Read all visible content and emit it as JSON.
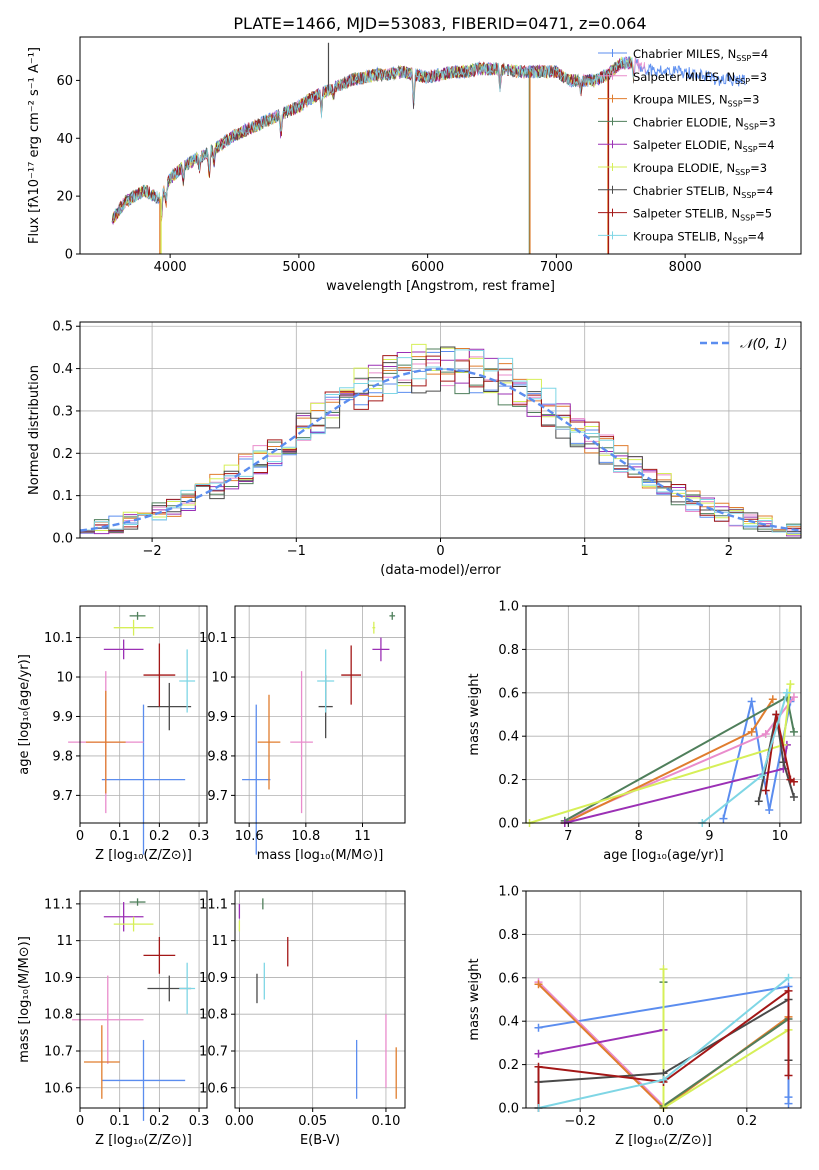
{
  "figure_title": "PLATE=1466, MJD=53083, FIBERID=0471, z=0.064",
  "colors": {
    "Chabrier MILES": "#5b8def",
    "Salpeter MILES": "#e98ccc",
    "Kroupa MILES": "#e07d2e",
    "Chabrier ELODIE": "#4f7f5b",
    "Salpeter ELODIE": "#9b30b5",
    "Kroupa ELODIE": "#d6ef58",
    "Chabrier STELIB": "#4a4a4a",
    "Salpeter STELIB": "#a31717",
    "Kroupa STELIB": "#7fd6e5"
  },
  "chart_data": [
    {
      "id": "spectrum",
      "type": "line",
      "title": "PLATE=1466, MJD=53083, FIBERID=0471, z=0.064",
      "xlabel": "wavelength [Angstrom, rest frame]",
      "ylabel": "Flux [fλ10⁻¹⁷ erg cm⁻² s⁻¹ A⁻¹]",
      "xlim": [
        3300,
        8900
      ],
      "ylim": [
        0,
        75
      ],
      "xticks": [
        4000,
        5000,
        6000,
        7000,
        8000
      ],
      "yticks": [
        0,
        20,
        40,
        60
      ],
      "grid": false,
      "legend_position": "right",
      "legend": [
        {
          "label": "Chabrier MILES, N",
          "sub": "SSP",
          "suffix": "=4"
        },
        {
          "label": "Salpeter MILES, N",
          "sub": "SSP",
          "suffix": "=3"
        },
        {
          "label": "Kroupa MILES, N",
          "sub": "SSP",
          "suffix": "=3"
        },
        {
          "label": "Chabrier ELODIE, N",
          "sub": "SSP",
          "suffix": "=3"
        },
        {
          "label": "Salpeter ELODIE, N",
          "sub": "SSP",
          "suffix": "=4"
        },
        {
          "label": "Kroupa ELODIE, N",
          "sub": "SSP",
          "suffix": "=3"
        },
        {
          "label": "Chabrier STELIB, N",
          "sub": "SSP",
          "suffix": "=4"
        },
        {
          "label": "Salpeter STELIB, N",
          "sub": "SSP",
          "suffix": "=5"
        },
        {
          "label": "Kroupa STELIB, N",
          "sub": "SSP",
          "suffix": "=4"
        }
      ],
      "continuum": [
        [
          3550,
          12
        ],
        [
          3650,
          18
        ],
        [
          3800,
          22
        ],
        [
          3920,
          19
        ],
        [
          4000,
          26
        ],
        [
          4100,
          30
        ],
        [
          4200,
          33
        ],
        [
          4300,
          35
        ],
        [
          4400,
          38
        ],
        [
          4500,
          41
        ],
        [
          4600,
          43
        ],
        [
          4700,
          45
        ],
        [
          4800,
          47
        ],
        [
          4900,
          49
        ],
        [
          5000,
          51
        ],
        [
          5100,
          54
        ],
        [
          5200,
          56
        ],
        [
          5300,
          58
        ],
        [
          5400,
          60
        ],
        [
          5500,
          61
        ],
        [
          5600,
          62
        ],
        [
          5700,
          62
        ],
        [
          5800,
          63
        ],
        [
          5900,
          62
        ],
        [
          6000,
          61
        ],
        [
          6100,
          62
        ],
        [
          6200,
          63
        ],
        [
          6300,
          63
        ],
        [
          6400,
          64
        ],
        [
          6500,
          64
        ],
        [
          6600,
          64
        ],
        [
          6700,
          63
        ],
        [
          6800,
          63
        ],
        [
          6900,
          63
        ],
        [
          7000,
          63
        ],
        [
          7100,
          60
        ],
        [
          7200,
          60
        ],
        [
          7300,
          60
        ],
        [
          7400,
          62
        ],
        [
          7500,
          66
        ],
        [
          7600,
          66
        ],
        [
          7700,
          64
        ],
        [
          7800,
          63
        ],
        [
          7900,
          63
        ],
        [
          8000,
          63
        ],
        [
          8100,
          62
        ],
        [
          8200,
          61
        ],
        [
          8300,
          60
        ],
        [
          8400,
          60
        ],
        [
          8500,
          60
        ]
      ],
      "absorption_lines": [
        [
          3934,
          7
        ],
        [
          3969,
          6
        ],
        [
          4102,
          5
        ],
        [
          4227,
          4
        ],
        [
          4304,
          9
        ],
        [
          4340,
          5
        ],
        [
          4861,
          8
        ],
        [
          5175,
          7
        ],
        [
          5270,
          3
        ],
        [
          5892,
          12
        ],
        [
          6563,
          7
        ],
        [
          7190,
          4
        ],
        [
          7600,
          5
        ]
      ],
      "sky_glitches": [
        [
          3920,
          0,
          "#e07d2e"
        ],
        [
          3930,
          0,
          "#d6ef58"
        ],
        [
          5230,
          73,
          "#4a4a4a"
        ],
        [
          6790,
          0,
          "#4f7f5b"
        ],
        [
          6795,
          0,
          "#e07d2e"
        ],
        [
          7400,
          0,
          "#e07d2e"
        ],
        [
          7405,
          0,
          "#a31717"
        ]
      ]
    },
    {
      "id": "residuals",
      "type": "histogram",
      "xlabel": "(data-model)/error",
      "ylabel": "Normed distribution",
      "xlim": [
        -2.5,
        2.5
      ],
      "ylim": [
        0,
        0.51
      ],
      "xticks": [
        -2,
        -1,
        0,
        1,
        2
      ],
      "yticks": [
        0.0,
        0.1,
        0.2,
        0.3,
        0.4,
        0.5
      ],
      "grid": true,
      "legend": [
        {
          "label": "𝒩(0, 1)"
        }
      ],
      "legend_position": "top-right",
      "bin_width": 0.1
    },
    {
      "id": "age_vs_Z",
      "type": "scatter",
      "xlabel": "Z [log₁₀(Z/Z⊙)]",
      "ylabel": "age  [log₁₀(age/yr)]",
      "xlim": [
        0.0,
        0.32
      ],
      "ylim": [
        9.63,
        10.18
      ],
      "xticks": [
        0.0,
        0.1,
        0.2,
        0.3
      ],
      "yticks": [
        9.7,
        9.8,
        9.9,
        10.0,
        10.1
      ],
      "grid": true,
      "points": [
        {
          "model": "Chabrier MILES",
          "x": 0.16,
          "y": 9.74,
          "xerr": 0.105,
          "yerr": 0.19
        },
        {
          "model": "Salpeter MILES",
          "x": 0.065,
          "y": 9.835,
          "xerr": 0.095,
          "yerr": 0.18
        },
        {
          "model": "Kroupa MILES",
          "x": 0.065,
          "y": 9.835,
          "xerr": 0.05,
          "yerr": 0.13
        },
        {
          "model": "Chabrier ELODIE",
          "x": 0.145,
          "y": 10.155,
          "xerr": 0.02,
          "yerr": 0.01
        },
        {
          "model": "Salpeter ELODIE",
          "x": 0.11,
          "y": 10.07,
          "xerr": 0.05,
          "yerr": 0.025
        },
        {
          "model": "Kroupa ELODIE",
          "x": 0.135,
          "y": 10.125,
          "xerr": 0.05,
          "yerr": 0.02
        },
        {
          "model": "Chabrier STELIB",
          "x": 0.225,
          "y": 9.925,
          "xerr": 0.055,
          "yerr": 0.06
        },
        {
          "model": "Salpeter STELIB",
          "x": 0.2,
          "y": 10.005,
          "xerr": 0.04,
          "yerr": 0.08
        },
        {
          "model": "Kroupa STELIB",
          "x": 0.27,
          "y": 9.99,
          "xerr": 0.02,
          "yerr": 0.08
        }
      ]
    },
    {
      "id": "age_vs_mass",
      "type": "scatter",
      "xlabel": "mass [log₁₀(M/M⊙)]",
      "xlim": [
        10.55,
        11.15
      ],
      "ylim": [
        9.63,
        10.18
      ],
      "xticks": [
        10.6,
        10.8,
        11.0
      ],
      "yticks": [
        9.7,
        9.8,
        9.9,
        10.0,
        10.1
      ],
      "grid": true,
      "points": [
        {
          "model": "Chabrier MILES",
          "x": 10.625,
          "y": 9.74,
          "xerr": 0.05,
          "yerr": 0.19
        },
        {
          "model": "Salpeter MILES",
          "x": 10.785,
          "y": 9.835,
          "xerr": 0.04,
          "yerr": 0.18
        },
        {
          "model": "Kroupa MILES",
          "x": 10.67,
          "y": 9.835,
          "xerr": 0.04,
          "yerr": 0.12
        },
        {
          "model": "Chabrier ELODIE",
          "x": 11.105,
          "y": 10.155,
          "xerr": 0.01,
          "yerr": 0.01
        },
        {
          "model": "Salpeter ELODIE",
          "x": 11.065,
          "y": 10.07,
          "xerr": 0.03,
          "yerr": 0.03
        },
        {
          "model": "Kroupa ELODIE",
          "x": 11.04,
          "y": 10.125,
          "xerr": 0.005,
          "yerr": 0.015
        },
        {
          "model": "Chabrier STELIB",
          "x": 10.87,
          "y": 9.925,
          "xerr": 0.025,
          "yerr": 0.08
        },
        {
          "model": "Salpeter STELIB",
          "x": 10.96,
          "y": 10.005,
          "xerr": 0.035,
          "yerr": 0.075
        },
        {
          "model": "Kroupa STELIB",
          "x": 10.87,
          "y": 9.99,
          "xerr": 0.03,
          "yerr": 0.08
        }
      ]
    },
    {
      "id": "mass_weight_vs_age",
      "type": "line",
      "xlabel": "age  [log₁₀(age/yr)]",
      "ylabel": "mass weight",
      "xlim": [
        6.4,
        10.3
      ],
      "ylim": [
        0,
        1.0
      ],
      "xticks": [
        7,
        8,
        9,
        10
      ],
      "yticks": [
        0.0,
        0.2,
        0.4,
        0.6,
        0.8,
        1.0
      ],
      "grid": true,
      "series": [
        {
          "model": "Chabrier MILES",
          "x": [
            9.2,
            9.6,
            9.85,
            10.15
          ],
          "y": [
            0.02,
            0.56,
            0.06,
            0.56
          ]
        },
        {
          "model": "Salpeter MILES",
          "x": [
            6.95,
            9.8,
            10.2
          ],
          "y": [
            0.01,
            0.41,
            0.58
          ]
        },
        {
          "model": "Kroupa MILES",
          "x": [
            6.95,
            9.6,
            9.9
          ],
          "y": [
            0.0,
            0.42,
            0.57
          ]
        },
        {
          "model": "Chabrier ELODIE",
          "x": [
            6.95,
            10.1,
            10.2
          ],
          "y": [
            0.01,
            0.58,
            0.42
          ]
        },
        {
          "model": "Salpeter ELODIE",
          "x": [
            6.95,
            10.05,
            10.1
          ],
          "y": [
            0.0,
            0.25,
            0.36
          ]
        },
        {
          "model": "Kroupa ELODIE",
          "x": [
            6.45,
            10.05,
            10.15
          ],
          "y": [
            0.0,
            0.36,
            0.64
          ]
        },
        {
          "model": "Chabrier STELIB",
          "x": [
            9.7,
            9.95,
            10.05,
            10.2
          ],
          "y": [
            0.1,
            0.5,
            0.28,
            0.12
          ]
        },
        {
          "model": "Salpeter STELIB",
          "x": [
            9.8,
            9.95,
            10.15,
            10.2
          ],
          "y": [
            0.15,
            0.5,
            0.2,
            0.19
          ]
        },
        {
          "model": "Kroupa STELIB",
          "x": [
            8.9,
            9.75,
            10.1
          ],
          "y": [
            0.0,
            0.22,
            0.6
          ]
        }
      ]
    },
    {
      "id": "mass_vs_Z",
      "type": "scatter",
      "xlabel": "Z [log₁₀(Z/Z⊙)]",
      "ylabel": "mass [log₁₀(M/M⊙)]",
      "xlim": [
        0.0,
        0.32
      ],
      "ylim": [
        10.545,
        11.135
      ],
      "xticks": [
        0.0,
        0.1,
        0.2,
        0.3
      ],
      "yticks": [
        10.6,
        10.7,
        10.8,
        10.9,
        11.0,
        11.1
      ],
      "grid": true,
      "points": [
        {
          "model": "Chabrier MILES",
          "x": 0.16,
          "y": 10.62,
          "xerr": 0.105,
          "yerr": 0.11
        },
        {
          "model": "Salpeter MILES",
          "x": 0.07,
          "y": 10.785,
          "xerr": 0.09,
          "yerr": 0.12
        },
        {
          "model": "Kroupa MILES",
          "x": 0.055,
          "y": 10.67,
          "xerr": 0.045,
          "yerr": 0.1
        },
        {
          "model": "Chabrier ELODIE",
          "x": 0.145,
          "y": 11.105,
          "xerr": 0.02,
          "yerr": 0.01
        },
        {
          "model": "Salpeter ELODIE",
          "x": 0.11,
          "y": 11.065,
          "xerr": 0.05,
          "yerr": 0.04
        },
        {
          "model": "Kroupa ELODIE",
          "x": 0.135,
          "y": 11.045,
          "xerr": 0.05,
          "yerr": 0.02
        },
        {
          "model": "Chabrier STELIB",
          "x": 0.225,
          "y": 10.87,
          "xerr": 0.055,
          "yerr": 0.035
        },
        {
          "model": "Salpeter STELIB",
          "x": 0.2,
          "y": 10.96,
          "xerr": 0.04,
          "yerr": 0.05
        },
        {
          "model": "Kroupa STELIB",
          "x": 0.27,
          "y": 10.87,
          "xerr": 0.02,
          "yerr": 0.07
        }
      ]
    },
    {
      "id": "mass_vs_ebv",
      "type": "scatter",
      "xlabel": "E(B-V)",
      "xlim": [
        -0.003,
        0.113
      ],
      "ylim": [
        10.545,
        11.135
      ],
      "xticks": [
        0.0,
        0.05,
        0.1
      ],
      "xtick_labels": [
        "0.00",
        "0.05",
        "0.10"
      ],
      "yticks": [
        10.6,
        10.7,
        10.8,
        10.9,
        11.0,
        11.1
      ],
      "grid": true,
      "points": [
        {
          "model": "Chabrier MILES",
          "x": 0.08,
          "y": 10.65,
          "yerr": 0.08
        },
        {
          "model": "Salpeter MILES",
          "x": 0.1,
          "y": 10.7,
          "yerr": 0.1
        },
        {
          "model": "Kroupa MILES",
          "x": 0.107,
          "y": 10.64,
          "yerr": 0.07
        },
        {
          "model": "Chabrier ELODIE",
          "x": 0.016,
          "y": 11.1,
          "yerr": 0.015
        },
        {
          "model": "Salpeter ELODIE",
          "x": 0.0,
          "y": 11.08,
          "yerr": 0.02
        },
        {
          "model": "Kroupa ELODIE",
          "x": 0.0,
          "y": 11.04,
          "yerr": 0.015
        },
        {
          "model": "Chabrier STELIB",
          "x": 0.012,
          "y": 10.87,
          "yerr": 0.04
        },
        {
          "model": "Salpeter STELIB",
          "x": 0.033,
          "y": 10.97,
          "yerr": 0.04
        },
        {
          "model": "Kroupa STELIB",
          "x": 0.017,
          "y": 10.89,
          "yerr": 0.05
        }
      ]
    },
    {
      "id": "mass_weight_vs_Z",
      "type": "line",
      "xlabel": "Z [log₁₀(Z/Z⊙)]",
      "ylabel": "mass weight",
      "xlim": [
        -0.33,
        0.33
      ],
      "ylim": [
        0,
        1.0
      ],
      "xticks": [
        -0.2,
        0.0,
        0.2
      ],
      "xtick_labels": [
        "−0.2",
        "0.0",
        "0.2"
      ],
      "yticks": [
        0.0,
        0.2,
        0.4,
        0.6,
        0.8,
        1.0
      ],
      "grid": true,
      "series": [
        {
          "model": "Chabrier MILES",
          "x": [
            -0.3,
            0.3,
            0.3,
            0.3
          ],
          "y": [
            0.37,
            0.56,
            0.05,
            0.02
          ]
        },
        {
          "model": "Salpeter MILES",
          "x": [
            -0.3,
            0.0,
            0.3
          ],
          "y": [
            0.58,
            0.01,
            0.41
          ]
        },
        {
          "model": "Kroupa MILES",
          "x": [
            -0.3,
            0.0,
            0.3
          ],
          "y": [
            0.57,
            0.0,
            0.42
          ]
        },
        {
          "model": "Chabrier ELODIE",
          "x": [
            0.0,
            0.0,
            0.3
          ],
          "y": [
            0.58,
            0.01,
            0.41
          ]
        },
        {
          "model": "Salpeter ELODIE",
          "x": [
            -0.3,
            0.0
          ],
          "y": [
            0.25,
            0.36
          ]
        },
        {
          "model": "Kroupa ELODIE",
          "x": [
            0.0,
            0.0,
            0.3
          ],
          "y": [
            0.64,
            0.0,
            0.36
          ]
        },
        {
          "model": "Chabrier STELIB",
          "x": [
            -0.3,
            0.0,
            0.3,
            0.3
          ],
          "y": [
            0.12,
            0.16,
            0.5,
            0.22
          ]
        },
        {
          "model": "Salpeter STELIB",
          "x": [
            -0.3,
            -0.3,
            0.0,
            0.3,
            0.3
          ],
          "y": [
            0.0,
            0.19,
            0.12,
            0.54,
            0.15
          ]
        },
        {
          "model": "Kroupa STELIB",
          "x": [
            -0.3,
            0.0,
            0.3
          ],
          "y": [
            0.0,
            0.13,
            0.6
          ]
        }
      ]
    }
  ]
}
